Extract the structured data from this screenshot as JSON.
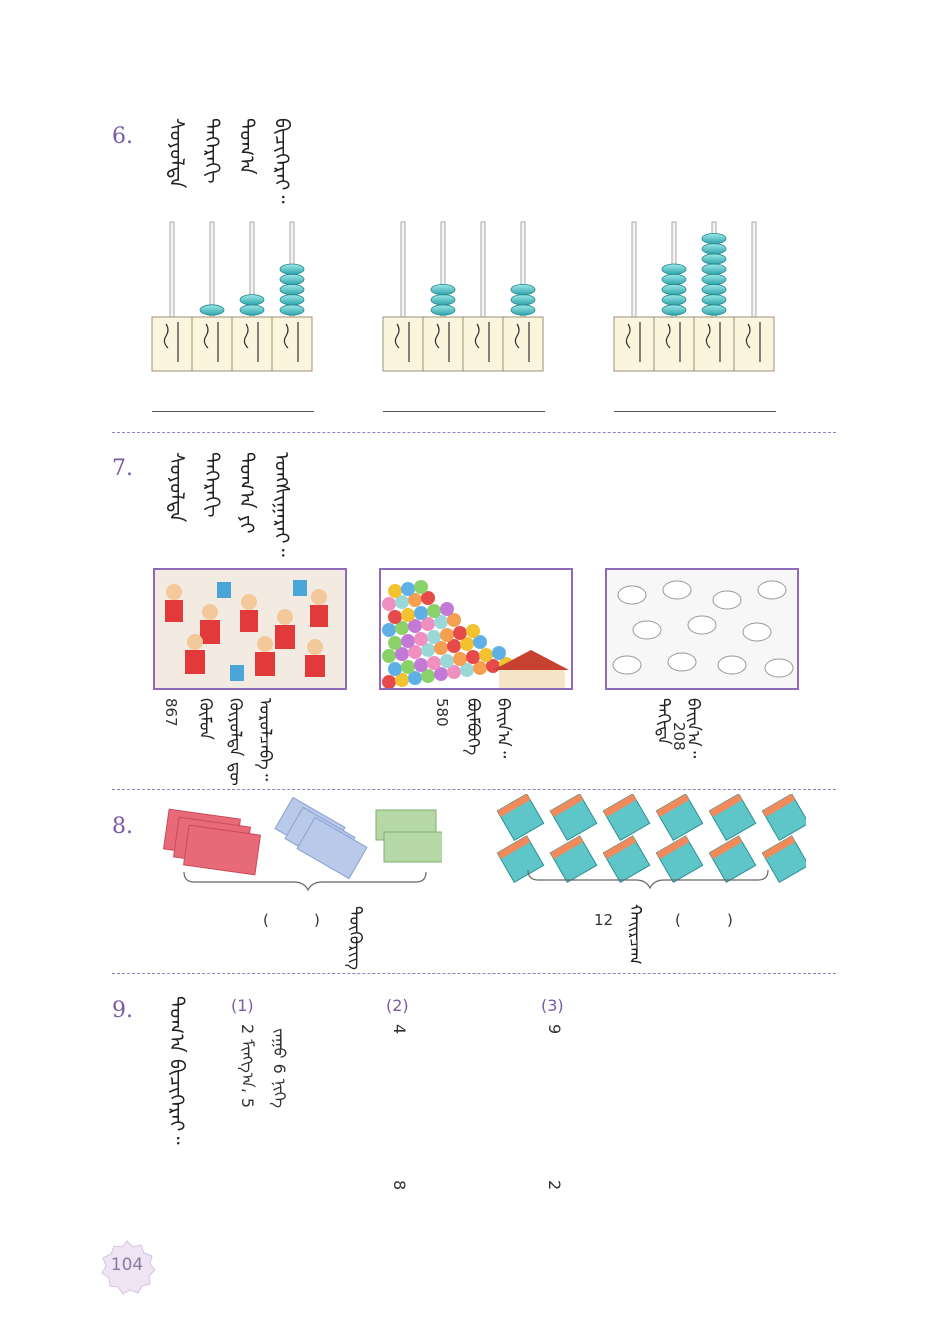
{
  "q6": {
    "number": "6.",
    "instruction": "ᠰᠤᠶᠤᠯᠲᠠ ᠳᠡᠭᠡᠷᠡᠬᠢ ᠲᠤᠭ᠎ᠠ ᠪᠢᠴᠢᠭᠡᠷᠡᠢ᠃"
  },
  "q7": {
    "number": "7.",
    "instruction": "ᠰᠤᠶᠤᠯᠲᠠ ᠳᠡᠭᠡᠷᠡᠬᠢ ᠲᠤᠭ᠎ᠠ ᠶᠢ ᠤᠩᠰᠢᠭᠠᠷᠠᠢ᠃",
    "captions": [
      {
        "number": "867",
        "text": "ᠬᠦᠮᠦᠨ ᠭᠦᠶᠦᠯᠲᠡ ᠳᠦ ᠣᠷᠣᠯᠴᠠᠪᠠ᠃"
      },
      {
        "number": "580",
        "text": "ᠪᠥᠮᠪᠦᠭᠡ ᠪᠠᠢᠨ᠎ᠠ᠃"
      },
      {
        "number": "208",
        "text": "ᠲᠠᠭᠢᠳᠠ ᠪᠠᠢᠨ᠎ᠠ᠃"
      }
    ]
  },
  "q8": {
    "number": "8.",
    "left_label": "ᠲᠦᠬᠦᠷᠢᠭ",
    "right_number": "12",
    "right_label": "ᠬᠠᠢᠷᠴᠠᠭ",
    "paren_left": "(",
    "paren_right": ")"
  },
  "q9": {
    "number": "9.",
    "instruction": "ᠲᠤᠭ᠎ᠠ ᠪᠢᠴᠢᠭᠡᠷᠡᠢ᠃",
    "items": [
      {
        "label": "(1)",
        "line1": "2 ᠮᠢᠩᠭ᠎ᠠ، 5",
        "line2": "ᠵᠠᠭᠤ 6 ᠨᠢᠭᠡ"
      },
      {
        "label": "(2)",
        "a": "4",
        "b": "8"
      },
      {
        "label": "(3)",
        "a": "9",
        "b": "2"
      }
    ]
  },
  "page_number": "104"
}
